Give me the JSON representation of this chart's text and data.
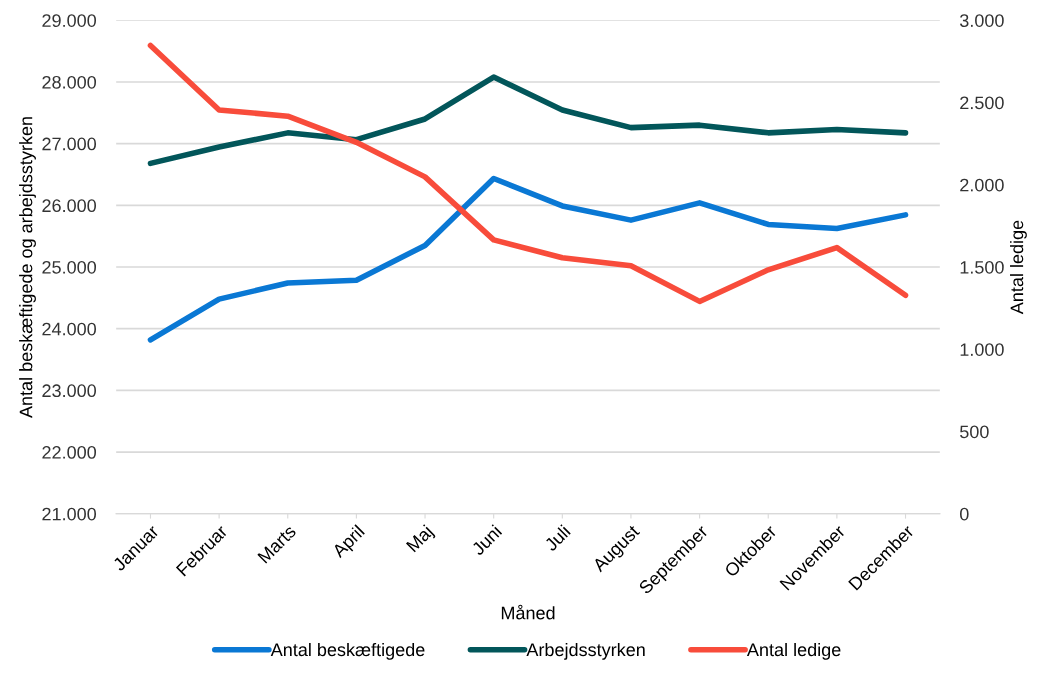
{
  "chart_data": {
    "type": "line",
    "xlabel": "Måned",
    "ylabel": "Antal beskæftigede og arbejdsstyrken",
    "y2label": "Antal ledige",
    "categories": [
      "Januar",
      "Februar",
      "Marts",
      "April",
      "Maj",
      "Juni",
      "Juli",
      "August",
      "September",
      "Oktober",
      "November",
      "December"
    ],
    "series": [
      {
        "name": "Antal beskæftigede",
        "color": "#0a78d4",
        "values": [
          23820,
          24480,
          24740,
          24785,
          25350,
          26435,
          25990,
          25760,
          26040,
          25690,
          25625,
          25845
        ]
      },
      {
        "name": "Arbejdsstyrken",
        "color": "#02565a",
        "values": [
          26680,
          26945,
          27175,
          27065,
          27400,
          28080,
          27545,
          27260,
          27300,
          27175,
          27230,
          27175
        ]
      },
      {
        "name": "Antal ledige",
        "color": "#f84c3b",
        "axis": "y2",
        "values": [
          2847,
          2455,
          2417,
          2258,
          2048,
          1665,
          1556,
          1508,
          1291,
          1483,
          1618,
          1328
        ]
      }
    ],
    "ylim": [
      21000,
      29000
    ],
    "yticks": [
      {
        "value": 21000,
        "label": "21.000"
      },
      {
        "value": 22000,
        "label": "22.000"
      },
      {
        "value": 23000,
        "label": "23.000"
      },
      {
        "value": 24000,
        "label": "24.000"
      },
      {
        "value": 25000,
        "label": "25.000"
      },
      {
        "value": 26000,
        "label": "26.000"
      },
      {
        "value": 27000,
        "label": "27.000"
      },
      {
        "value": 28000,
        "label": "28.000"
      },
      {
        "value": 29000,
        "label": "29.000"
      }
    ],
    "y2lim": [
      0,
      3000
    ],
    "y2ticks": [
      0,
      500,
      {
        "value": 1000,
        "label": "1.000"
      },
      {
        "value": 1500,
        "label": "1.500"
      },
      {
        "value": 2000,
        "label": "2.000"
      },
      {
        "value": 2500,
        "label": "2.500"
      },
      {
        "value": 3000,
        "label": "3.000"
      }
    ],
    "grid": "y",
    "legend": "bottom",
    "marker": "none",
    "line_style": "solid"
  }
}
